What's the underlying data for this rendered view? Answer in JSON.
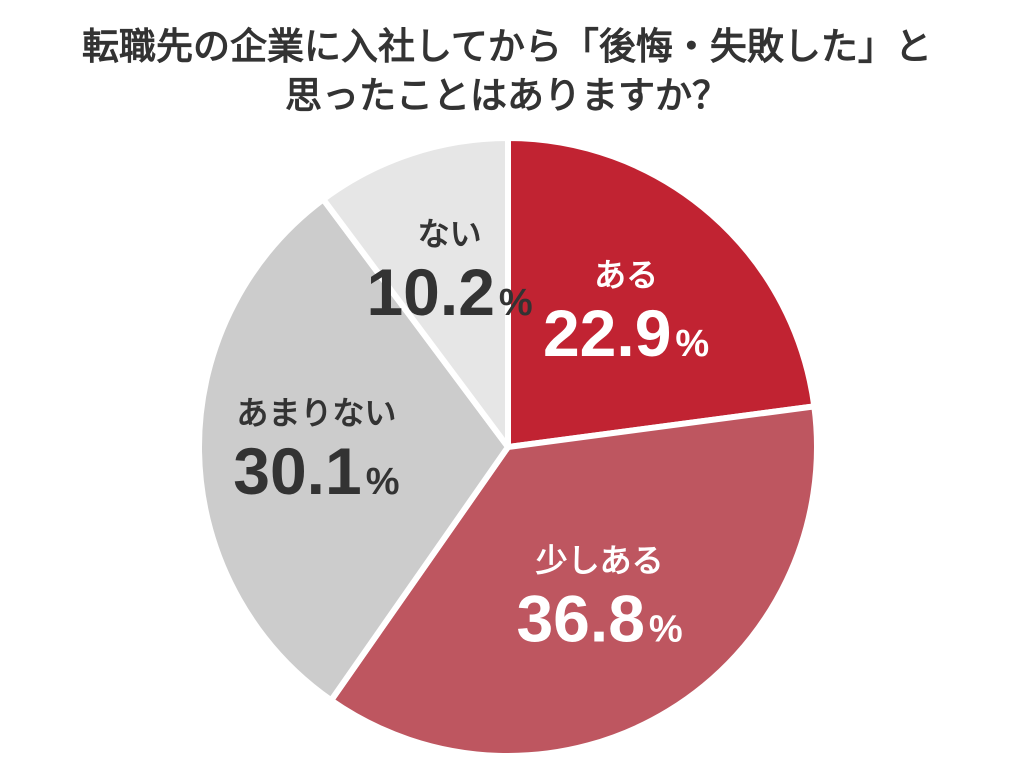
{
  "title_lines": [
    "転職先の企業に入社してから「後悔・失敗した」と",
    "思ったことはありますか？"
  ],
  "chart_data": {
    "type": "pie",
    "title": "転職先の企業に入社してから「後悔・失敗した」と思ったことはありますか？",
    "unit": "%",
    "slices": [
      {
        "label": "ある",
        "value": 22.9,
        "display": "22.9",
        "color": "#c12332",
        "text_color": "#ffffff"
      },
      {
        "label": "少しある",
        "value": 36.8,
        "display": "36.8",
        "color": "#be5660",
        "text_color": "#ffffff"
      },
      {
        "label": "あまりない",
        "value": 30.1,
        "display": "30.1",
        "color": "#cccccc",
        "text_color": "#333333"
      },
      {
        "label": "ない",
        "value": 10.2,
        "display": "10.2",
        "color": "#e6e6e6",
        "text_color": "#333333"
      }
    ]
  }
}
